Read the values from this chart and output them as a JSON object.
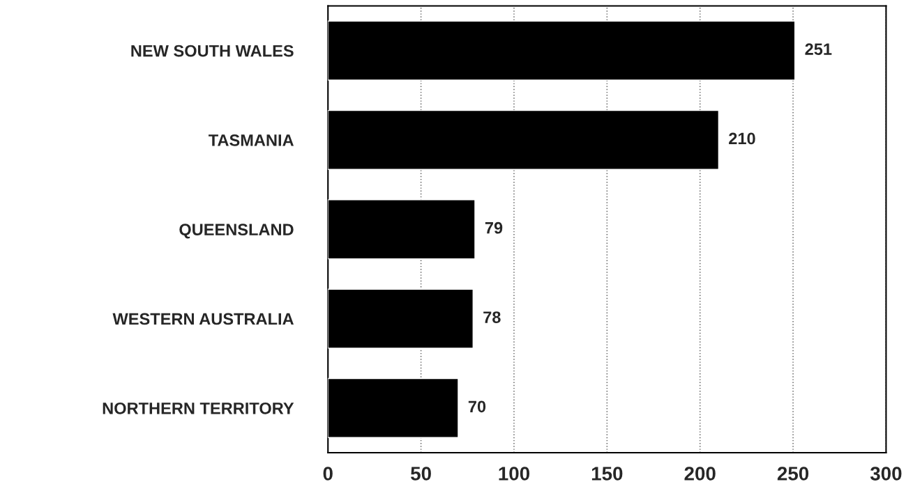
{
  "chart_data": {
    "type": "bar",
    "orientation": "horizontal",
    "categories": [
      "NEW SOUTH WALES",
      "TASMANIA",
      "QUEENSLAND",
      "WESTERN AUSTRALIA",
      "NORTHERN TERRITORY"
    ],
    "values": [
      251,
      210,
      79,
      78,
      70
    ],
    "color": "#000000",
    "xlim": [
      0,
      300
    ],
    "xticks": [
      0,
      50,
      100,
      150,
      200,
      250,
      300
    ],
    "grid": "x",
    "data_labels": true,
    "legend": false
  }
}
